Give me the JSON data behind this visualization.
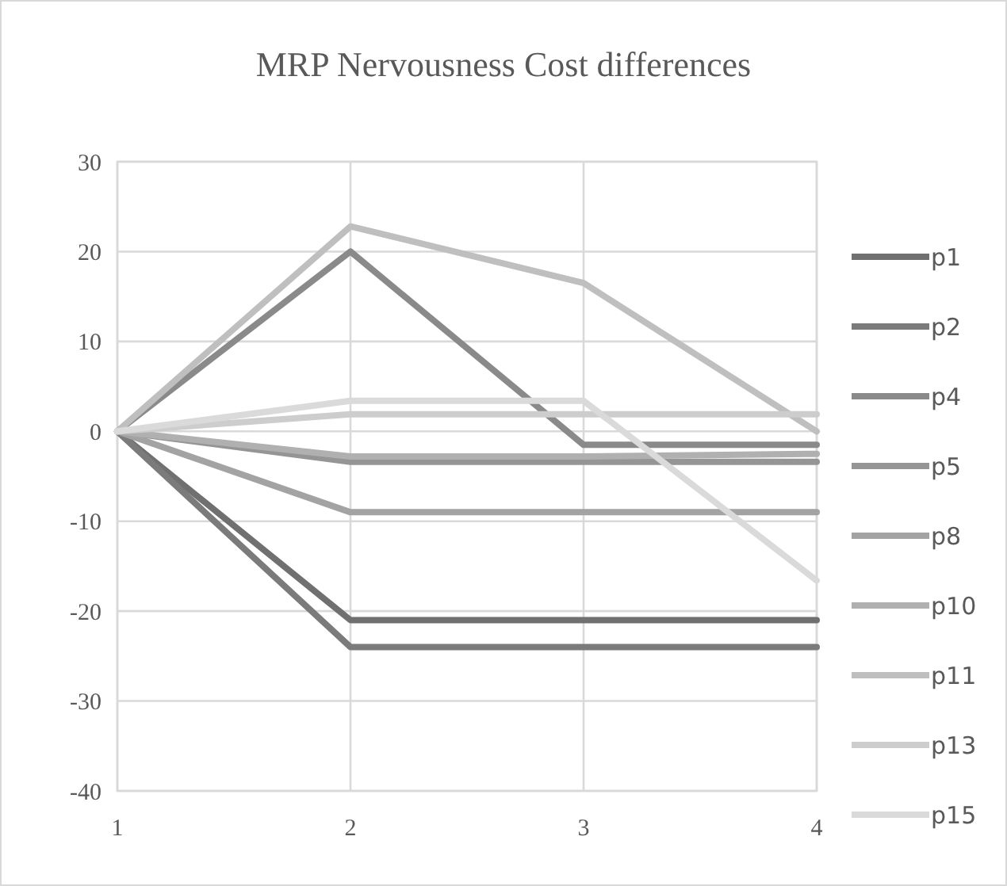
{
  "chart_data": {
    "type": "line",
    "title": "MRP Nervousness Cost differences",
    "x": [
      1,
      2,
      3,
      4
    ],
    "xlim": [
      1,
      4
    ],
    "xticks": [
      1,
      2,
      3,
      4
    ],
    "ylim": [
      -40,
      30
    ],
    "yticks": [
      -40,
      -30,
      -20,
      -10,
      0,
      10,
      20,
      30
    ],
    "grid": true,
    "legend": "right",
    "marker": "none",
    "line_style": "solid",
    "series": [
      {
        "name": "p1",
        "color": "#707070",
        "values": [
          0,
          -21,
          -21,
          -21
        ]
      },
      {
        "name": "p2",
        "color": "#7b7b7b",
        "values": [
          0,
          -24,
          -24,
          -24
        ]
      },
      {
        "name": "p4",
        "color": "#8a8a8a",
        "values": [
          0,
          20,
          -1.5,
          -1.5
        ]
      },
      {
        "name": "p5",
        "color": "#959595",
        "values": [
          0,
          -3.4,
          -3.4,
          -3.4
        ]
      },
      {
        "name": "p8",
        "color": "#a3a3a3",
        "values": [
          0,
          -9,
          -9,
          -9
        ]
      },
      {
        "name": "p10",
        "color": "#b0b0b0",
        "values": [
          0,
          -2.8,
          -2.8,
          -2.5
        ]
      },
      {
        "name": "p11",
        "color": "#bfbfbf",
        "values": [
          0,
          22.8,
          16.5,
          0
        ]
      },
      {
        "name": "p13",
        "color": "#cdcdcd",
        "values": [
          0,
          1.9,
          1.9,
          1.9
        ]
      },
      {
        "name": "p15",
        "color": "#dadada",
        "values": [
          0,
          3.4,
          3.4,
          -16.6
        ]
      }
    ]
  }
}
